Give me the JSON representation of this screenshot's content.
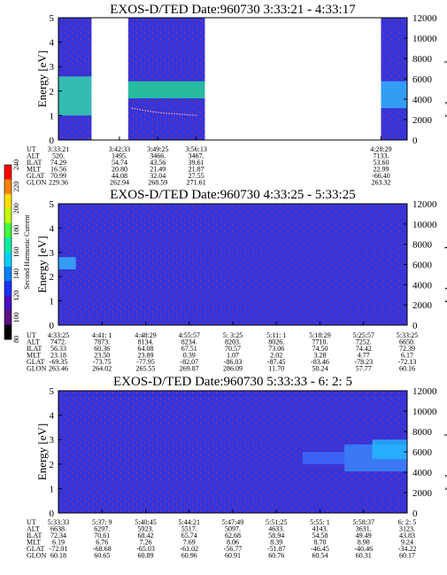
{
  "colors": {
    "background": "#3030d8",
    "data_low": "#3f3ff0",
    "noise": "#b03060",
    "green_band": "#20e890",
    "cyan_band": "#30c0ff",
    "trace": "#ffb0a0"
  },
  "colorbar": {
    "label": "Second Harmonic Current",
    "ticks": [
      "80",
      "100",
      "120",
      "140",
      "160",
      "180",
      "200",
      "220",
      "240"
    ],
    "colors": [
      "#000000",
      "#5a1080",
      "#4a10c0",
      "#1a30ff",
      "#0080ff",
      "#00d0ff",
      "#00f0a0",
      "#40ff40",
      "#c0ff00",
      "#ffe000",
      "#ff8000",
      "#ff0000"
    ]
  },
  "chart_data": [
    {
      "type": "heatmap",
      "title": "EXOS-D/TED   Date:960730  3:33:21 - 4:33:17",
      "ylabel": "Energy [eV]",
      "y2label": "Temperature [K]",
      "ylim": [
        0,
        5
      ],
      "y2lim": [
        0,
        12000
      ],
      "yticks": [
        "0",
        "1",
        "2",
        "3",
        "4",
        "5"
      ],
      "y2ticks": [
        "0",
        "2000",
        "4000",
        "6000",
        "8000",
        "10000",
        "12000"
      ],
      "gaps": [
        [
          0.095,
          0.2
        ],
        [
          0.42,
          0.925
        ]
      ],
      "bands": [
        {
          "x": [
            0.0,
            0.095
          ],
          "y": [
            1.0,
            2.6
          ],
          "color": "#30e8a8"
        },
        {
          "x": [
            0.2,
            0.42
          ],
          "y": [
            1.7,
            2.4
          ],
          "color": "#20e890"
        },
        {
          "x": [
            0.925,
            1.0
          ],
          "y": [
            1.3,
            2.4
          ],
          "color": "#30c0ff"
        }
      ],
      "trace": [
        [
          0.21,
          1.3
        ],
        [
          0.25,
          1.2
        ],
        [
          0.3,
          1.1
        ],
        [
          0.35,
          1.05
        ],
        [
          0.4,
          1.0
        ]
      ],
      "table": {
        "rows": [
          {
            "label": "UT",
            "values": [
              "3:33:21",
              "3:42:33",
              "3:49:25",
              "3:56:13",
              "4:28:29"
            ]
          },
          {
            "label": "ALT",
            "values": [
              "520.",
              "1495.",
              "3466.",
              "3467.",
              "7133."
            ]
          },
          {
            "label": "ILAT",
            "values": [
              "74.29",
              "54.74",
              "43.56",
              "39.61",
              "53.60"
            ]
          },
          {
            "label": "MLT",
            "values": [
              "16.56",
              "20.80",
              "21.49",
              "21.87",
              "22.99"
            ]
          },
          {
            "label": "GLAT",
            "values": [
              "70.99",
              "44.08",
              "32.04",
              "27.55",
              "-66.40"
            ]
          },
          {
            "label": "GLON",
            "values": [
              "229.36",
              "262.94",
              "268.59",
              "271.61",
              "263.32"
            ]
          }
        ],
        "col_x": [
          0.0,
          0.175,
          0.285,
          0.395,
          0.925
        ]
      }
    },
    {
      "type": "heatmap",
      "title": "EXOS-D/TED   Date:960730  4:33:25 - 5:33:25",
      "ylabel": "Energy [eV]",
      "y2label": "Temperature [K]",
      "ylim": [
        0,
        5
      ],
      "y2lim": [
        0,
        12000
      ],
      "yticks": [
        "0",
        "1",
        "2",
        "3",
        "4",
        "5"
      ],
      "y2ticks": [
        "0",
        "2000",
        "4000",
        "6000",
        "8000",
        "10000",
        "12000"
      ],
      "gaps": [],
      "bands": [
        {
          "x": [
            0.0,
            0.05
          ],
          "y": [
            2.3,
            2.8
          ],
          "color": "#30c0ff"
        }
      ],
      "trace": [],
      "table": {
        "rows": [
          {
            "label": "UT",
            "values": [
              "4:33:25",
              "4:41: 1",
              "4:48:29",
              "4:55:57",
              "5: 3:25",
              "5:11: 1",
              "5:18:29",
              "5:25:57",
              "5:33:25"
            ]
          },
          {
            "label": "ALT",
            "values": [
              "7472.",
              "7873.",
              "8134.",
              "8234.",
              "8203.",
              "8026.",
              "7710.",
              "7252.",
              "6650."
            ]
          },
          {
            "label": "ILAT",
            "values": [
              "56.33",
              "60.36",
              "64.08",
              "67.51",
              "70.57",
              "73.06",
              "74.50",
              "74.42",
              "72.39"
            ]
          },
          {
            "label": "MLT",
            "values": [
              "23.18",
              "23.50",
              "23.89",
              "0.39",
              "1.07",
              "2.02",
              "3.28",
              "4.77",
              "6.17"
            ]
          },
          {
            "label": "GLAT",
            "values": [
              "-69.35",
              "-73.75",
              "-77.95",
              "-82.07",
              "-86.03",
              "-87.45",
              "-83.46",
              "-78.23",
              "-72.13"
            ]
          },
          {
            "label": "GLON",
            "values": [
              "263.46",
              "264.02",
              "265.55",
              "269.87",
              "286.09",
              "11.70",
              "50.24",
              "57.77",
              "60.16"
            ]
          }
        ],
        "col_x": [
          0.0,
          0.125,
          0.25,
          0.375,
          0.5,
          0.625,
          0.75,
          0.875,
          1.0
        ]
      }
    },
    {
      "type": "heatmap",
      "title": "EXOS-D/TED   Date:960730  5:33:33 - 6: 2: 5",
      "ylabel": "Energy [eV]",
      "y2label": "Temperature [K]",
      "ylim": [
        0,
        5
      ],
      "y2lim": [
        0,
        12000
      ],
      "yticks": [
        "0",
        "1",
        "2",
        "3",
        "4",
        "5"
      ],
      "y2ticks": [
        "0",
        "2000",
        "4000",
        "6000",
        "8000",
        "10000",
        "12000"
      ],
      "gaps": [],
      "bands": [
        {
          "x": [
            0.7,
            0.82
          ],
          "y": [
            2.0,
            2.5
          ],
          "color": "#3a70ff"
        },
        {
          "x": [
            0.82,
            1.0
          ],
          "y": [
            1.7,
            2.8
          ],
          "color": "#3a90ff"
        },
        {
          "x": [
            0.9,
            1.0
          ],
          "y": [
            2.2,
            3.0
          ],
          "color": "#20c0ff"
        }
      ],
      "trace": [],
      "table": {
        "rows": [
          {
            "label": "UT",
            "values": [
              "5:33:33",
              "5:37: 9",
              "5:40:45",
              "5:44:21",
              "5:47:49",
              "5:51:25",
              "5:55: 1",
              "5:58:37",
              "6: 2: 5"
            ]
          },
          {
            "label": "ALT",
            "values": [
              "6638.",
              "6297.",
              "5923.",
              "5517.",
              "5097.",
              "4633.",
              "4143.",
              "3631.",
              "3123."
            ]
          },
          {
            "label": "ILAT",
            "values": [
              "72.34",
              "70.61",
              "68.42",
              "65.74",
              "62.68",
              "58.94",
              "54.58",
              "49.49",
              "43.83"
            ]
          },
          {
            "label": "MLT",
            "values": [
              "6.19",
              "6.76",
              "7.26",
              "7.69",
              "8.06",
              "8.39",
              "8.70",
              "8.98",
              "9.24"
            ]
          },
          {
            "label": "GLAT",
            "values": [
              "-72.01",
              "-68.68",
              "-65.03",
              "-61.02",
              "-56.77",
              "-51.87",
              "-46.45",
              "-40.46",
              "-34.22"
            ]
          },
          {
            "label": "GLON",
            "values": [
              "60.18",
              "60.65",
              "60.89",
              "60.96",
              "60.91",
              "60.76",
              "60.54",
              "60.31",
              "60.17"
            ]
          }
        ],
        "col_x": [
          0.0,
          0.125,
          0.25,
          0.375,
          0.5,
          0.625,
          0.75,
          0.875,
          1.0
        ]
      }
    }
  ]
}
